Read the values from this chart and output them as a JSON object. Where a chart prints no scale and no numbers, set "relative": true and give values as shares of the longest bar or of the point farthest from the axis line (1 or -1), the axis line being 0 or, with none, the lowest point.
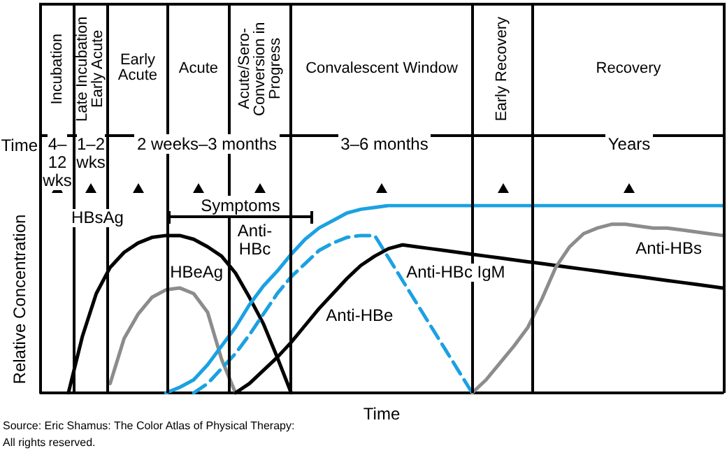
{
  "chart_data": {
    "type": "line",
    "relative": true,
    "xlabel": "Time",
    "ylabel": "Relative Concentration",
    "marker": "none",
    "categories": [
      null,
      null,
      null,
      null,
      null,
      null,
      null,
      null,
      null,
      null,
      null,
      null,
      null,
      null,
      null,
      null,
      null,
      null,
      null,
      null,
      null,
      null,
      null,
      null,
      null,
      null,
      null,
      null,
      null,
      null,
      null,
      null,
      null,
      null,
      null,
      null,
      null,
      null,
      null,
      null,
      null,
      null,
      null,
      null,
      null,
      null,
      null,
      null,
      null,
      null
    ],
    "annotations": [
      "Incubation",
      "Late Incubation Early Acute",
      "Early Acute",
      "Acute",
      "Acute/Sero-Conversion in Progress",
      "Convalescent Window",
      "Early Recovery",
      "Recovery",
      "Time",
      "4–12 wks",
      "1–2 wks",
      "2 weeks–3 months",
      "3–6 months",
      "Years",
      "Symptoms",
      "Source: Eric Shamus: The Color Atlas of Physical Therapy:",
      "All rights reserved."
    ],
    "series": [
      {
        "name": "HBsAg",
        "color": "#000000",
        "values": [
          null,
          null,
          0,
          0.3,
          0.53,
          0.67,
          0.75,
          0.8,
          0.83,
          0.84,
          0.84,
          0.82,
          0.78,
          0.73,
          0.64,
          0.51,
          0.37,
          0.19,
          0,
          null,
          null,
          null,
          null,
          null,
          null,
          null,
          null,
          null,
          null,
          null,
          null,
          null,
          null,
          null,
          null,
          null,
          null,
          null,
          null,
          null,
          null,
          null,
          null,
          null,
          null,
          null,
          null,
          null,
          null,
          null
        ]
      },
      {
        "name": "HBeAg",
        "color": "#8c8c8c",
        "values": [
          null,
          null,
          null,
          null,
          null,
          0.05,
          0.29,
          0.42,
          0.51,
          0.55,
          0.56,
          0.53,
          0.43,
          0.18,
          0,
          null,
          null,
          null,
          null,
          null,
          null,
          null,
          null,
          null,
          null,
          null,
          null,
          null,
          null,
          null,
          null,
          null,
          null,
          null,
          null,
          null,
          null,
          null,
          null,
          null,
          null,
          null,
          null,
          null,
          null,
          null,
          null,
          null,
          null,
          null
        ]
      },
      {
        "name": "Anti-HBc",
        "color": "#1ba1e2",
        "values": [
          null,
          null,
          null,
          null,
          null,
          null,
          null,
          null,
          null,
          0,
          0.03,
          0.07,
          0.15,
          0.25,
          0.35,
          0.47,
          0.57,
          0.65,
          0.74,
          0.82,
          0.88,
          0.92,
          0.96,
          0.98,
          0.99,
          1,
          1,
          1,
          1,
          1,
          1,
          1,
          1,
          1,
          1,
          1,
          1,
          1,
          1,
          1,
          1,
          1,
          1,
          1,
          1,
          1,
          1,
          1,
          1,
          1
        ]
      },
      {
        "name": "Anti-HBc IgM",
        "color": "#1ba1e2",
        "line_style": "dashed",
        "values": [
          null,
          null,
          null,
          null,
          null,
          null,
          null,
          null,
          null,
          null,
          null,
          0,
          0.05,
          0.13,
          0.21,
          0.31,
          0.42,
          0.53,
          0.62,
          0.69,
          0.76,
          0.8,
          0.83,
          0.84,
          0.84,
          0.72,
          0.6,
          0.48,
          0.36,
          0.24,
          0.12,
          0,
          null,
          null,
          null,
          null,
          null,
          null,
          null,
          null,
          null,
          null,
          null,
          null,
          null,
          null,
          null,
          null,
          null,
          null
        ]
      },
      {
        "name": "Anti-HBe",
        "color": "#000000",
        "values": [
          null,
          null,
          null,
          null,
          null,
          null,
          null,
          null,
          null,
          null,
          null,
          null,
          null,
          null,
          0,
          0.05,
          0.12,
          0.19,
          0.27,
          0.36,
          0.45,
          0.53,
          0.61,
          0.68,
          0.73,
          0.77,
          0.79,
          0.78,
          0.77,
          0.76,
          0.75,
          0.74,
          0.73,
          0.72,
          0.71,
          0.7,
          0.69,
          0.68,
          0.67,
          0.66,
          0.65,
          0.64,
          0.63,
          0.62,
          0.61,
          0.6,
          0.59,
          0.58,
          0.57,
          0.56
        ]
      },
      {
        "name": "Anti-HBs",
        "color": "#8c8c8c",
        "values": [
          null,
          null,
          null,
          null,
          null,
          null,
          null,
          null,
          null,
          null,
          null,
          null,
          null,
          null,
          null,
          null,
          null,
          null,
          null,
          null,
          null,
          null,
          null,
          null,
          null,
          null,
          null,
          null,
          null,
          null,
          null,
          0,
          0.07,
          0.16,
          0.25,
          0.35,
          0.5,
          0.67,
          0.78,
          0.85,
          0.88,
          0.9,
          0.9,
          0.89,
          0.88,
          0.88,
          0.87,
          0.86,
          0.85,
          0.84
        ]
      }
    ]
  }
}
